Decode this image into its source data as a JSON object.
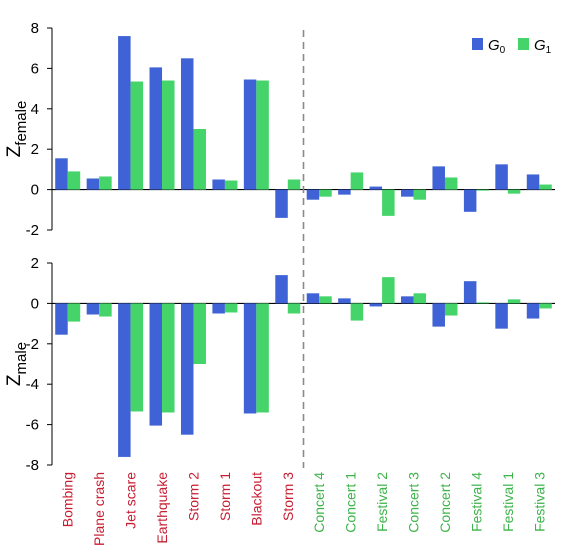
{
  "chart_data": [
    {
      "type": "bar",
      "ylabel_base": "Z",
      "ylabel_sub": "female",
      "ylim": [
        -2,
        8
      ],
      "yticks": [
        "-2",
        "0",
        "2",
        "4",
        "6",
        "8"
      ],
      "categories": [
        "Bombing",
        "Plane crash",
        "Jet scare",
        "Earthquake",
        "Storm 2",
        "Storm 1",
        "Blackout",
        "Storm 3",
        "Concert 4",
        "Concert 1",
        "Festival 2",
        "Concert 3",
        "Concert 2",
        "Festival 4",
        "Festival 1",
        "Festival 3"
      ],
      "series": [
        {
          "name": "G0",
          "values": [
            1.55,
            0.55,
            7.6,
            6.05,
            6.5,
            0.5,
            5.45,
            -1.4,
            -0.5,
            -0.25,
            0.15,
            -0.35,
            1.15,
            -1.1,
            1.25,
            0.75
          ]
        },
        {
          "name": "G1",
          "values": [
            0.9,
            0.65,
            5.35,
            5.4,
            3.0,
            0.45,
            5.4,
            0.5,
            -0.35,
            0.85,
            -1.3,
            -0.5,
            0.6,
            -0.05,
            -0.2,
            0.25
          ]
        }
      ]
    },
    {
      "type": "bar",
      "ylabel_base": "Z",
      "ylabel_sub": "male",
      "ylim": [
        -8,
        2
      ],
      "yticks": [
        "-8",
        "-6",
        "-4",
        "-2",
        "0",
        "2"
      ],
      "categories": [
        "Bombing",
        "Plane crash",
        "Jet scare",
        "Earthquake",
        "Storm 2",
        "Storm 1",
        "Blackout",
        "Storm 3",
        "Concert 4",
        "Concert 1",
        "Festival 2",
        "Concert 3",
        "Concert 2",
        "Festival 4",
        "Festival 1",
        "Festival 3"
      ],
      "series": [
        {
          "name": "G0",
          "values": [
            -1.55,
            -0.55,
            -7.6,
            -6.05,
            -6.5,
            -0.5,
            -5.45,
            1.4,
            0.5,
            0.25,
            -0.15,
            0.35,
            -1.15,
            1.1,
            -1.25,
            -0.75
          ]
        },
        {
          "name": "G1",
          "values": [
            -0.9,
            -0.65,
            -5.35,
            -5.4,
            -3.0,
            -0.45,
            -5.4,
            -0.5,
            0.35,
            -0.85,
            1.3,
            0.5,
            -0.6,
            0.05,
            0.2,
            -0.25
          ]
        }
      ]
    }
  ],
  "legend": {
    "items": [
      {
        "base": "G",
        "sub": "0"
      },
      {
        "base": "G",
        "sub": "1"
      }
    ],
    "position": "top-right"
  },
  "category_groups": {
    "negative_events_count": 8
  },
  "colors": {
    "G0": "#3f63d6",
    "G1": "#44d46a",
    "negative_label": "#c81e33",
    "positive_label": "#3cb44a",
    "divider": "#8a8a8a"
  }
}
